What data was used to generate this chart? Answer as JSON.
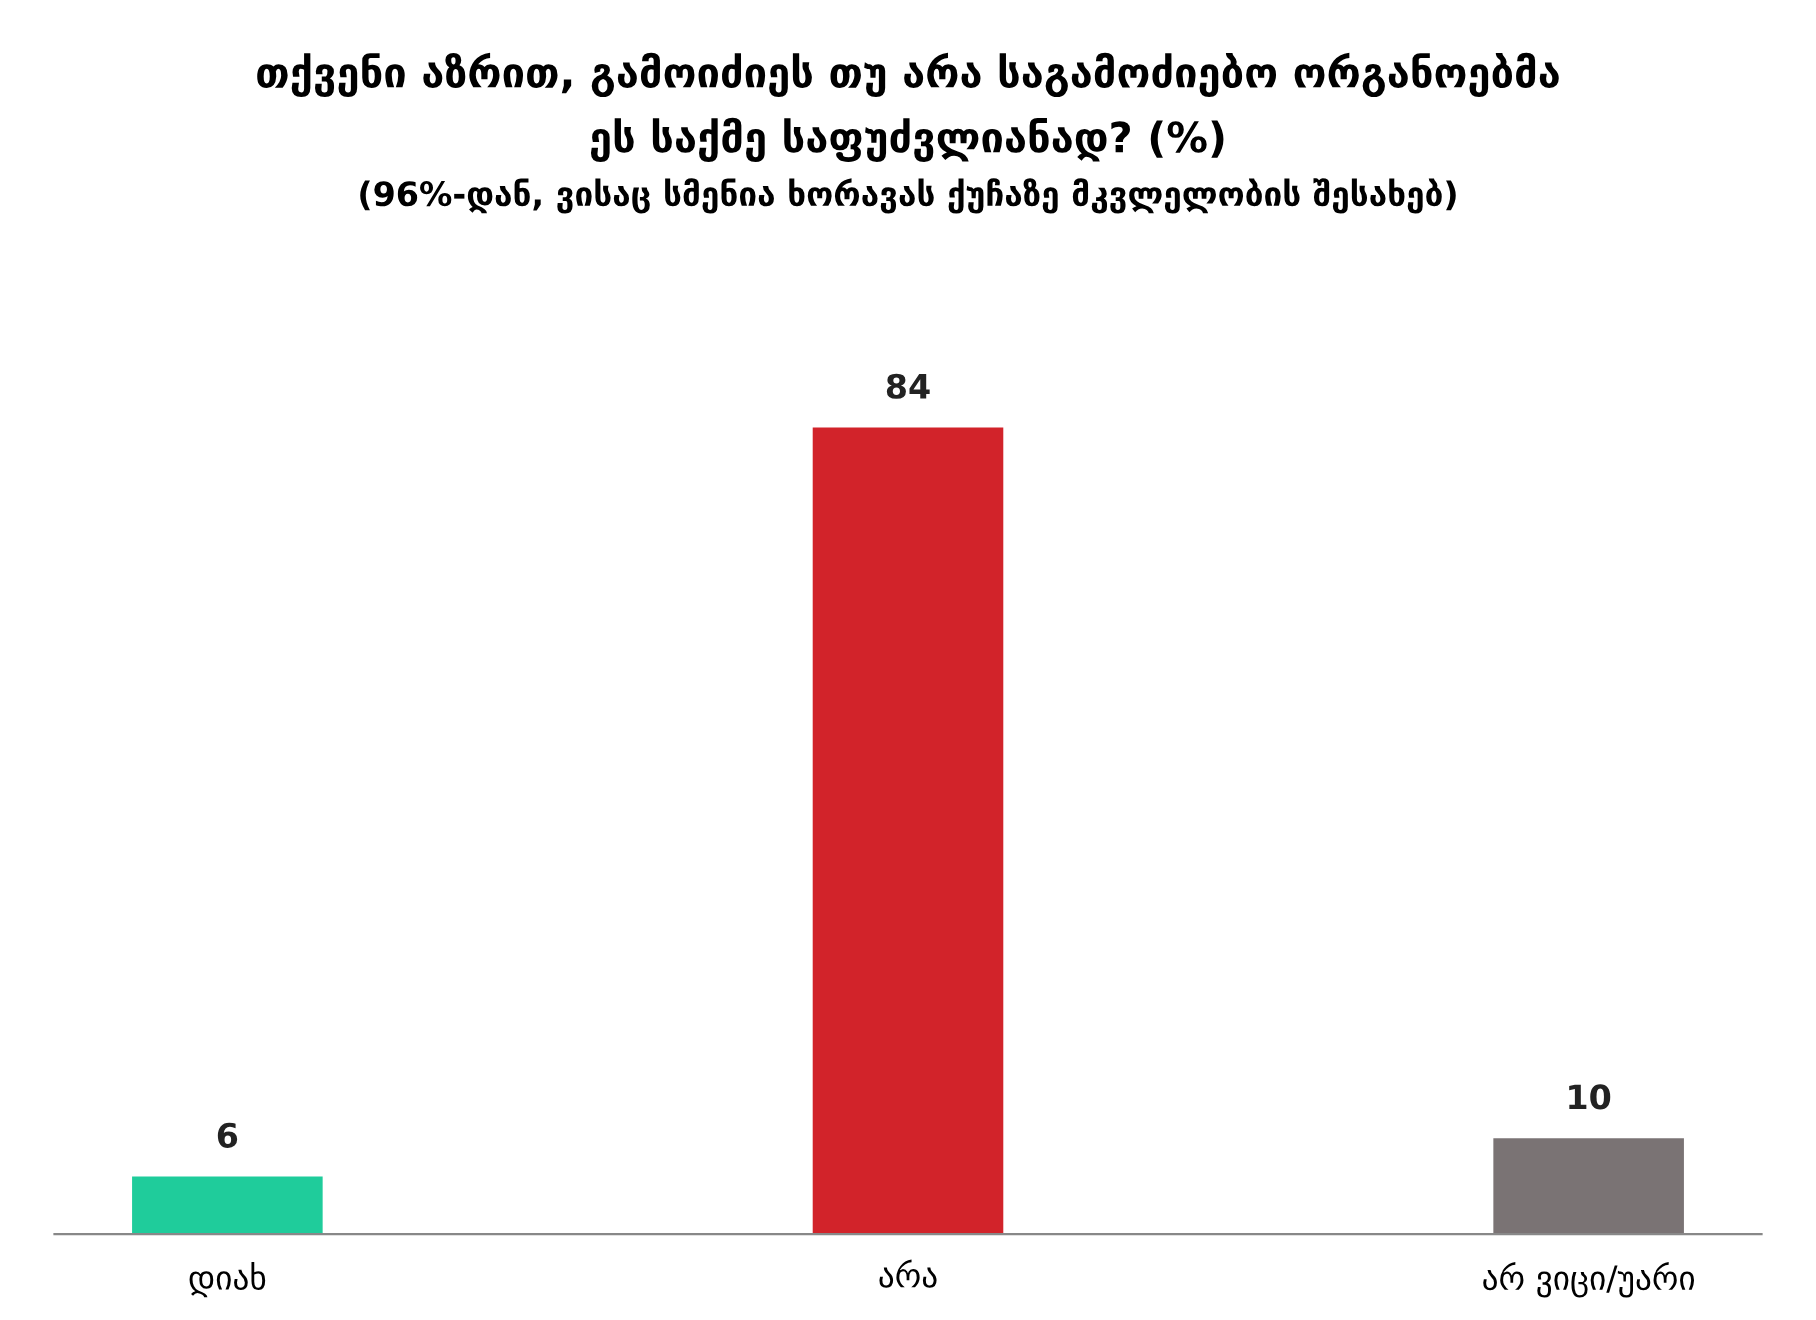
{
  "chart_data": {
    "type": "bar",
    "title": "თქვენი აზრით, გამოიძიეს თუ არა საგამოძიებო ორგანოებმა\nეს საქმე საფუძვლიანად? (%)",
    "subtitle": "(96%-დან, ვისაც სმენია ხორავას ქუჩაზე მკვლელობის შესახებ)",
    "categories": [
      "დიახ",
      "არა",
      "არ ვიცი/უარი"
    ],
    "values": [
      6,
      84,
      10
    ],
    "colors": [
      "#1fcc9b",
      "#d2232a",
      "#7a7374"
    ],
    "data_labels": true,
    "grid": false,
    "legend": false
  }
}
